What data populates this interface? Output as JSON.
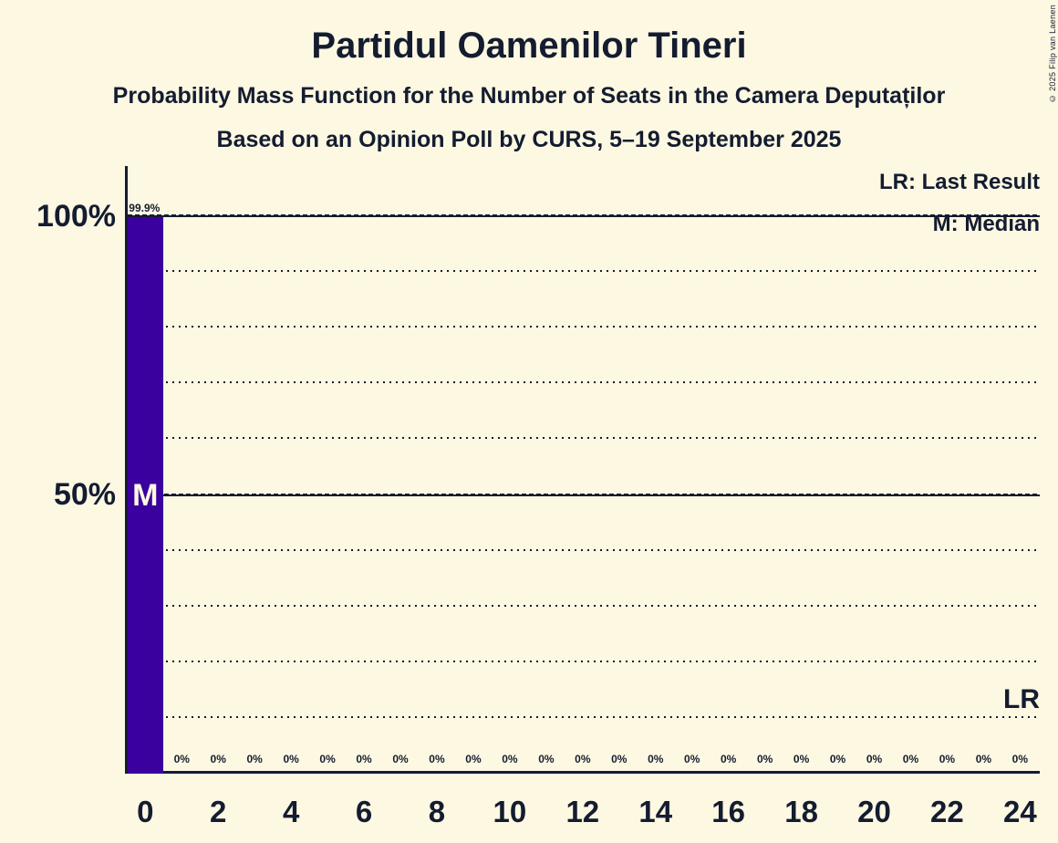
{
  "header": {
    "title": "Partidul Oamenilor Tineri",
    "subtitle": "Probability Mass Function for the Number of Seats in the Camera Deputaților",
    "poll_line": "Based on an Opinion Poll by CURS, 5–19 September 2025"
  },
  "copyright": "© 2025 Filip van Laenen",
  "legend": {
    "lr": "LR: Last Result",
    "m": "M: Median"
  },
  "axis": {
    "y100": "100%",
    "y50": "50%"
  },
  "bar": {
    "value_label": "99.9%",
    "median_label": "M"
  },
  "lr_marker": "LR",
  "colors": {
    "background": "#fdf8e2",
    "text": "#141c30",
    "bar": "#3a019e"
  },
  "chart_data": {
    "type": "bar",
    "title": "Partidul Oamenilor Tineri",
    "subtitle": "Probability Mass Function for the Number of Seats in the Camera Deputaților",
    "source_line": "Based on an Opinion Poll by CURS, 5–19 September 2025",
    "categories": [
      0,
      1,
      2,
      3,
      4,
      5,
      6,
      7,
      8,
      9,
      10,
      11,
      12,
      13,
      14,
      15,
      16,
      17,
      18,
      19,
      20,
      21,
      22,
      23,
      24
    ],
    "values_percent": [
      99.9,
      0,
      0,
      0,
      0,
      0,
      0,
      0,
      0,
      0,
      0,
      0,
      0,
      0,
      0,
      0,
      0,
      0,
      0,
      0,
      0,
      0,
      0,
      0,
      0
    ],
    "x_tick_labels": [
      "0",
      "2",
      "4",
      "6",
      "8",
      "10",
      "12",
      "14",
      "16",
      "18",
      "20",
      "22",
      "24"
    ],
    "y_tick_labels": [
      "100%",
      "50%"
    ],
    "ylim_percent": [
      0,
      109
    ],
    "gridlines_percent": [
      10,
      20,
      30,
      40,
      50,
      60,
      70,
      80,
      90,
      100
    ],
    "major_gridlines_percent": [
      50,
      100
    ],
    "median_seats": 0,
    "legend_position": "top-right",
    "annotations": [
      {
        "text": "M",
        "meaning": "Median",
        "at_seat": 0,
        "at_percent": 50
      },
      {
        "text": "LR",
        "meaning": "Last Result",
        "at_right_edge": true,
        "above_percent": 10
      },
      {
        "text": "99.9%",
        "meaning": "probability of 0 seats",
        "at_seat": 0
      }
    ]
  }
}
